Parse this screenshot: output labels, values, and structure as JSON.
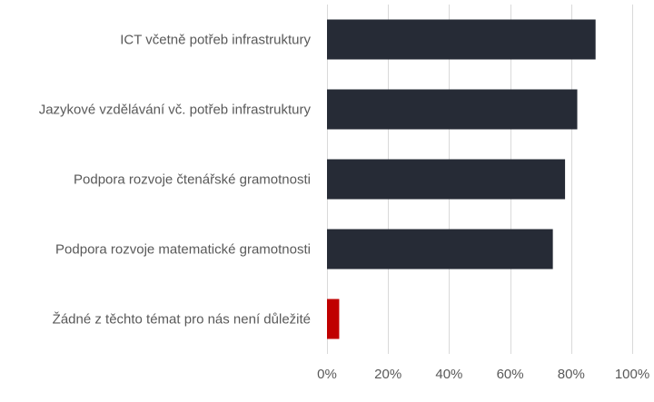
{
  "chart_data": {
    "type": "bar",
    "orientation": "horizontal",
    "title": "",
    "xlabel": "",
    "ylabel": "",
    "categories": [
      "ICT včetně potřeb infrastruktury",
      "Jazykové vzdělávání vč. potřeb infrastruktury",
      "Podpora rozvoje čtenářské gramotnosti",
      "Podpora rozvoje matematické gramotnosti",
      "Žádné z těchto témat pro nás není důležité"
    ],
    "values": [
      88,
      82,
      78,
      74,
      4
    ],
    "bar_colors": [
      "#262b36",
      "#262b36",
      "#262b36",
      "#262b36",
      "#c00000"
    ],
    "xlim": [
      0,
      100
    ],
    "x_ticks": [
      0,
      20,
      40,
      60,
      80,
      100
    ],
    "x_tick_labels": [
      "0%",
      "20%",
      "40%",
      "60%",
      "80%",
      "100%"
    ],
    "grid": "vertical",
    "legend": "none"
  }
}
